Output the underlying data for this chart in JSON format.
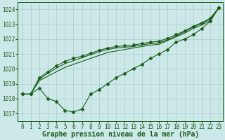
{
  "background_color": "#cce8e8",
  "grid_color": "#aacccc",
  "line_color": "#1a5c1a",
  "marker": "D",
  "marker_size": 2.5,
  "line_width": 0.8,
  "xlabel": "Graphe pression niveau de la mer (hPa)",
  "xlabel_fontsize": 7,
  "xlabel_bold": true,
  "xlabel_color": "#1a5c1a",
  "tick_fontsize": 5.5,
  "tick_color": "#1a5c1a",
  "xlim": [
    -0.5,
    23.5
  ],
  "ylim": [
    1016.5,
    1024.5
  ],
  "yticks": [
    1017,
    1018,
    1019,
    1020,
    1021,
    1022,
    1023,
    1024
  ],
  "xticks": [
    0,
    1,
    2,
    3,
    4,
    5,
    6,
    7,
    8,
    9,
    10,
    11,
    12,
    13,
    14,
    15,
    16,
    17,
    18,
    19,
    20,
    21,
    22,
    23
  ],
  "series": [
    {
      "data": [
        1018.3,
        1018.3,
        1018.7,
        1018.0,
        1017.8,
        1017.2,
        1017.1,
        1017.3,
        1018.3,
        1018.6,
        1019.0,
        1019.4,
        1019.7,
        1020.0,
        1020.3,
        1020.7,
        1021.0,
        1021.3,
        1021.8,
        1022.0,
        1022.3,
        1022.7,
        1023.2,
        1024.1
      ],
      "markers": true,
      "marker_every": 1
    },
    {
      "data": [
        1018.3,
        1018.3,
        1019.2,
        1019.5,
        1019.8,
        1020.1,
        1020.3,
        1020.5,
        1020.7,
        1020.9,
        1021.1,
        1021.2,
        1021.3,
        1021.4,
        1021.5,
        1021.6,
        1021.65,
        1021.9,
        1022.15,
        1022.4,
        1022.7,
        1022.95,
        1023.25,
        1024.1
      ],
      "markers": false
    },
    {
      "data": [
        1018.3,
        1018.3,
        1019.3,
        1019.7,
        1020.05,
        1020.35,
        1020.55,
        1020.75,
        1020.95,
        1021.15,
        1021.3,
        1021.4,
        1021.45,
        1021.5,
        1021.6,
        1021.7,
        1021.75,
        1021.95,
        1022.2,
        1022.5,
        1022.8,
        1023.05,
        1023.35,
        1024.1
      ],
      "markers": false
    },
    {
      "data": [
        1018.3,
        1018.3,
        1019.4,
        1019.8,
        1020.2,
        1020.5,
        1020.7,
        1020.85,
        1021.05,
        1021.25,
        1021.4,
        1021.5,
        1021.55,
        1021.6,
        1021.7,
        1021.8,
        1021.85,
        1022.05,
        1022.3,
        1022.55,
        1022.85,
        1023.1,
        1023.4,
        1024.1
      ],
      "markers": true,
      "marker_every": 1
    }
  ]
}
